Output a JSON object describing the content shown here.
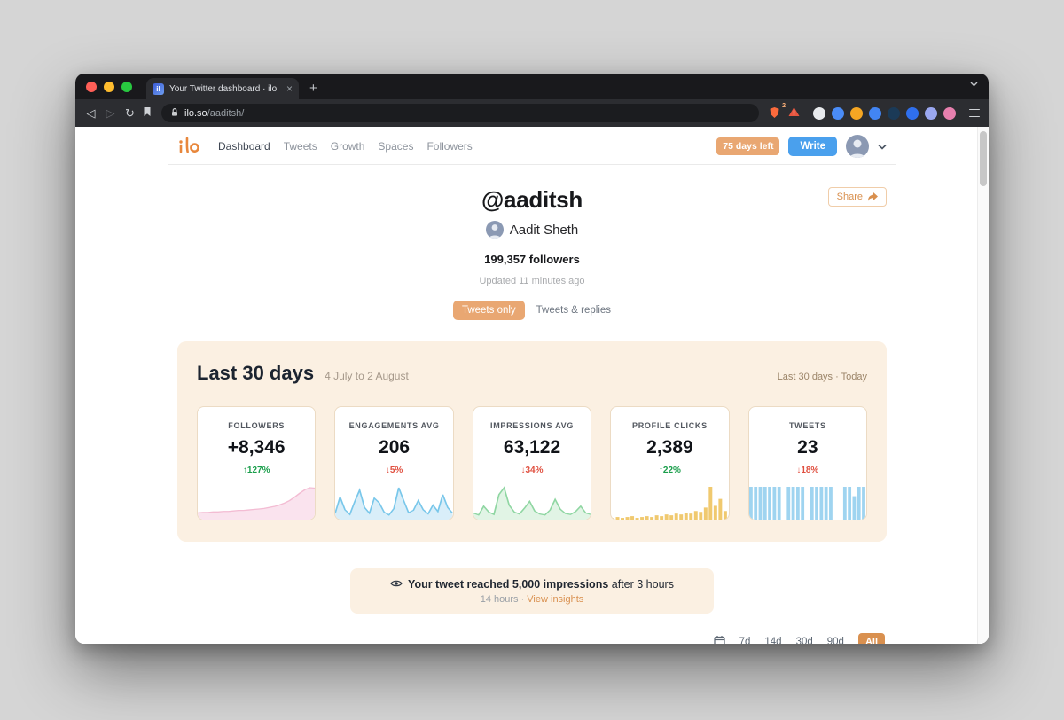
{
  "colors": {
    "accent": "#e9a772",
    "accent_deep": "#d9904f",
    "blue": "#4aa0ed",
    "up": "#1a9e4b",
    "down": "#e04f3f"
  },
  "window": {
    "tab_title": "Your Twitter dashboard · ilo",
    "new_tab": "+",
    "url_domain": "ilo.so",
    "url_path": "/aaditsh/",
    "shield_badge": "2"
  },
  "header": {
    "logo_text": "ilo",
    "nav": [
      {
        "label": "Dashboard"
      },
      {
        "label": "Tweets"
      },
      {
        "label": "Growth"
      },
      {
        "label": "Spaces"
      },
      {
        "label": "Followers"
      }
    ],
    "trial_badge": "75 days left",
    "write_button": "Write"
  },
  "profile": {
    "handle": "@aaditsh",
    "name": "Aadit Sheth",
    "followers": "199,357 followers",
    "updated": "Updated 11 minutes ago",
    "share_label": "Share"
  },
  "filter_toggle": {
    "active": "Tweets only",
    "inactive": "Tweets & replies"
  },
  "panel": {
    "title": "Last 30 days",
    "date_range": "4 July to 2 August",
    "range_note": "Last 30 days · Today"
  },
  "stats": [
    {
      "label": "FOLLOWERS",
      "value": "+8,346",
      "arrow": "↑",
      "delta": "127%",
      "direction": "up",
      "spark": {
        "type": "area",
        "stroke": "#f3bcd3",
        "fill": "#fae3ee",
        "values": [
          10,
          11,
          11,
          12,
          12,
          13,
          13,
          14,
          15,
          15,
          16,
          17,
          18,
          19,
          21,
          23,
          26,
          30,
          35,
          42,
          50,
          57,
          61,
          60
        ]
      }
    },
    {
      "label": "ENGAGEMENTS AVG",
      "value": "206",
      "arrow": "↓",
      "delta": "5%",
      "direction": "down",
      "spark": {
        "type": "area",
        "stroke": "#79c7ea",
        "fill": "#d9eef9",
        "values": [
          8,
          36,
          14,
          6,
          28,
          48,
          18,
          8,
          34,
          26,
          10,
          5,
          16,
          52,
          30,
          9,
          13,
          30,
          14,
          7,
          22,
          11,
          40,
          18,
          8
        ]
      }
    },
    {
      "label": "IMPRESSIONS AVG",
      "value": "63,122",
      "arrow": "↓",
      "delta": "34%",
      "direction": "down",
      "spark": {
        "type": "area",
        "stroke": "#8fd6a2",
        "fill": "#e1f4e5",
        "values": [
          10,
          6,
          24,
          12,
          7,
          48,
          62,
          26,
          12,
          8,
          20,
          34,
          14,
          8,
          6,
          16,
          38,
          18,
          9,
          7,
          13,
          24,
          10,
          7
        ]
      }
    },
    {
      "label": "PROFILE CLICKS",
      "value": "2,389",
      "arrow": "↑",
      "delta": "22%",
      "direction": "up",
      "spark": {
        "type": "bars",
        "fill": "#f0c96f",
        "values": [
          2,
          3,
          2,
          3,
          4,
          2,
          3,
          4,
          3,
          5,
          4,
          6,
          5,
          7,
          6,
          8,
          7,
          10,
          9,
          14,
          38,
          16,
          24,
          10
        ]
      }
    },
    {
      "label": "TWEETS",
      "value": "23",
      "arrow": "↓",
      "delta": "18%",
      "direction": "down",
      "spark": {
        "type": "bars",
        "fill": "#9fd4f0",
        "values": [
          28,
          28,
          28,
          28,
          28,
          28,
          28,
          0,
          28,
          28,
          28,
          28,
          0,
          28,
          28,
          28,
          28,
          28,
          0,
          0,
          28,
          28,
          20,
          28,
          28
        ]
      }
    }
  ],
  "notification": {
    "bold": "Your tweet reached 5,000 impressions",
    "rest": " after 3 hours",
    "meta": "14 hours · ",
    "link": "View insights"
  },
  "range_selector": {
    "options": [
      "7d",
      "14d",
      "30d",
      "90d",
      "All"
    ],
    "selected": "All"
  },
  "icons": {
    "eye": "eye-icon",
    "share": "share-arrow-icon",
    "calendar": "calendar-icon",
    "lock": "lock-icon",
    "shield": "shield-icon",
    "warning": "warning-icon"
  }
}
